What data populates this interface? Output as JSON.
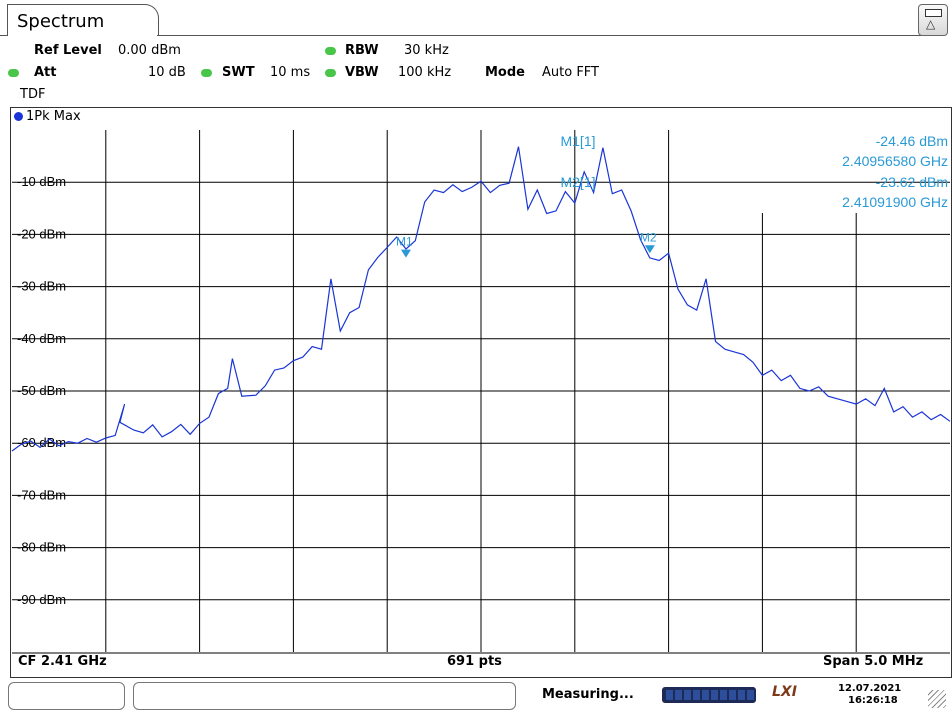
{
  "tab": {
    "title": "Spectrum"
  },
  "corner_button": {
    "icon": "window-layout-icon"
  },
  "params": {
    "ref_level_label": "Ref Level",
    "ref_level_value": "0.00 dBm",
    "att_label": "Att",
    "att_value": "10 dB",
    "swt_label": "SWT",
    "swt_value": "10 ms",
    "rbw_label": "RBW",
    "rbw_value": "30 kHz",
    "vbw_label": "VBW",
    "vbw_value": "100 kHz",
    "mode_label": "Mode",
    "mode_value": "Auto FFT",
    "tdf": "TDF"
  },
  "trace": {
    "label": "1Pk Max",
    "color": "#1a35d6"
  },
  "markers": {
    "m1_label": "M1[1]",
    "m1_level": "-24.46 dBm",
    "m1_freq": "2.40956580 GHz",
    "m2_label": "M2[1]",
    "m2_level": "-23.62 dBm",
    "m2_freq": "2.41091900 GHz",
    "m1_marker": "M1",
    "m2_marker": "M2",
    "color": "#2a9ad6"
  },
  "footer": {
    "cf": "CF 2.41 GHz",
    "pts": "691 pts",
    "span": "Span 5.0 MHz"
  },
  "status": {
    "text": "Measuring...",
    "date": "12.07.2021",
    "time": "16:26:18",
    "brand": "LXI"
  },
  "chart_data": {
    "type": "line",
    "xlabel": "",
    "ylabel": "",
    "ylim": [
      -100,
      0
    ],
    "y_ticks": [
      "-10 dBm",
      "-20 dBm",
      "-30 dBm",
      "-40 dBm",
      "-50 dBm",
      "-60 dBm",
      "-70 dBm",
      "-80 dBm",
      "-90 dBm"
    ],
    "grid": true,
    "x_center_ghz": 2.41,
    "x_span_mhz": 5.0,
    "x_divisions": 10,
    "series": [
      {
        "name": "1Pk Max",
        "x_div": [
          0,
          0.1,
          0.2,
          0.3,
          0.4,
          0.5,
          0.6,
          0.7,
          0.8,
          0.9,
          1.0,
          1.1,
          1.2,
          1.15,
          1.3,
          1.4,
          1.5,
          1.6,
          1.7,
          1.8,
          1.9,
          2.0,
          2.1,
          2.2,
          2.3,
          2.35,
          2.45,
          2.6,
          2.7,
          2.8,
          2.9,
          3.0,
          3.1,
          3.2,
          3.3,
          3.4,
          3.5,
          3.6,
          3.7,
          3.8,
          3.9,
          4.0,
          4.1,
          4.2,
          4.3,
          4.4,
          4.5,
          4.6,
          4.7,
          4.8,
          4.9,
          5.0,
          5.1,
          5.2,
          5.3,
          5.4,
          5.5,
          5.6,
          5.7,
          5.8,
          5.9,
          6.0,
          6.1,
          6.2,
          6.3,
          6.4,
          6.5,
          6.6,
          6.7,
          6.8,
          6.9,
          7.0,
          7.1,
          7.2,
          7.3,
          7.4,
          7.5,
          7.6,
          7.7,
          7.8,
          7.9,
          8.0,
          8.1,
          8.2,
          8.3,
          8.4,
          8.5,
          8.6,
          8.7,
          8.8,
          8.9,
          9.0,
          9.1,
          9.2,
          9.3,
          9.4,
          9.5,
          9.6,
          9.7,
          9.8,
          9.9,
          10.0
        ],
        "values": [
          -61.5,
          -60.2,
          -59.6,
          -60.8,
          -59.2,
          -60.5,
          -59.7,
          -60.0,
          -59.1,
          -59.8,
          -59.0,
          -58.5,
          -52.5,
          -56.0,
          -57.5,
          -58.0,
          -56.5,
          -58.8,
          -57.8,
          -56.4,
          -58.3,
          -56.2,
          -55.0,
          -50.5,
          -49.5,
          -43.8,
          -51.0,
          -50.8,
          -49.0,
          -46.0,
          -45.6,
          -44.2,
          -43.5,
          -41.5,
          -42.0,
          -28.5,
          -38.5,
          -35.0,
          -34.0,
          -26.8,
          -24.4,
          -22.5,
          -20.5,
          -22.8,
          -21.2,
          -13.8,
          -11.5,
          -12.0,
          -10.5,
          -11.8,
          -11.0,
          -9.8,
          -12.0,
          -10.6,
          -10.2,
          -3.2,
          -15.2,
          -11.5,
          -16.0,
          -15.5,
          -11.8,
          -14.0,
          -8.0,
          -12.0,
          -3.4,
          -12.2,
          -11.5,
          -15.5,
          -21.0,
          -24.5,
          -25.0,
          -23.6,
          -30.5,
          -33.5,
          -34.5,
          -28.5,
          -40.5,
          -42.0,
          -42.5,
          -43.0,
          -44.5,
          -47.0,
          -46.0,
          -48.0,
          -47.0,
          -49.5,
          -50.0,
          -49.2,
          -51.0,
          -51.5,
          -52.0,
          -52.5,
          -51.5,
          -52.8,
          -49.5,
          -54.0,
          -53.0,
          -55.0,
          -54.0,
          -55.5,
          -54.5,
          -55.8
        ]
      }
    ],
    "markers": [
      {
        "name": "M1",
        "x_div": 4.2,
        "value": -24.46
      },
      {
        "name": "M2",
        "x_div": 6.8,
        "value": -23.62
      }
    ]
  }
}
